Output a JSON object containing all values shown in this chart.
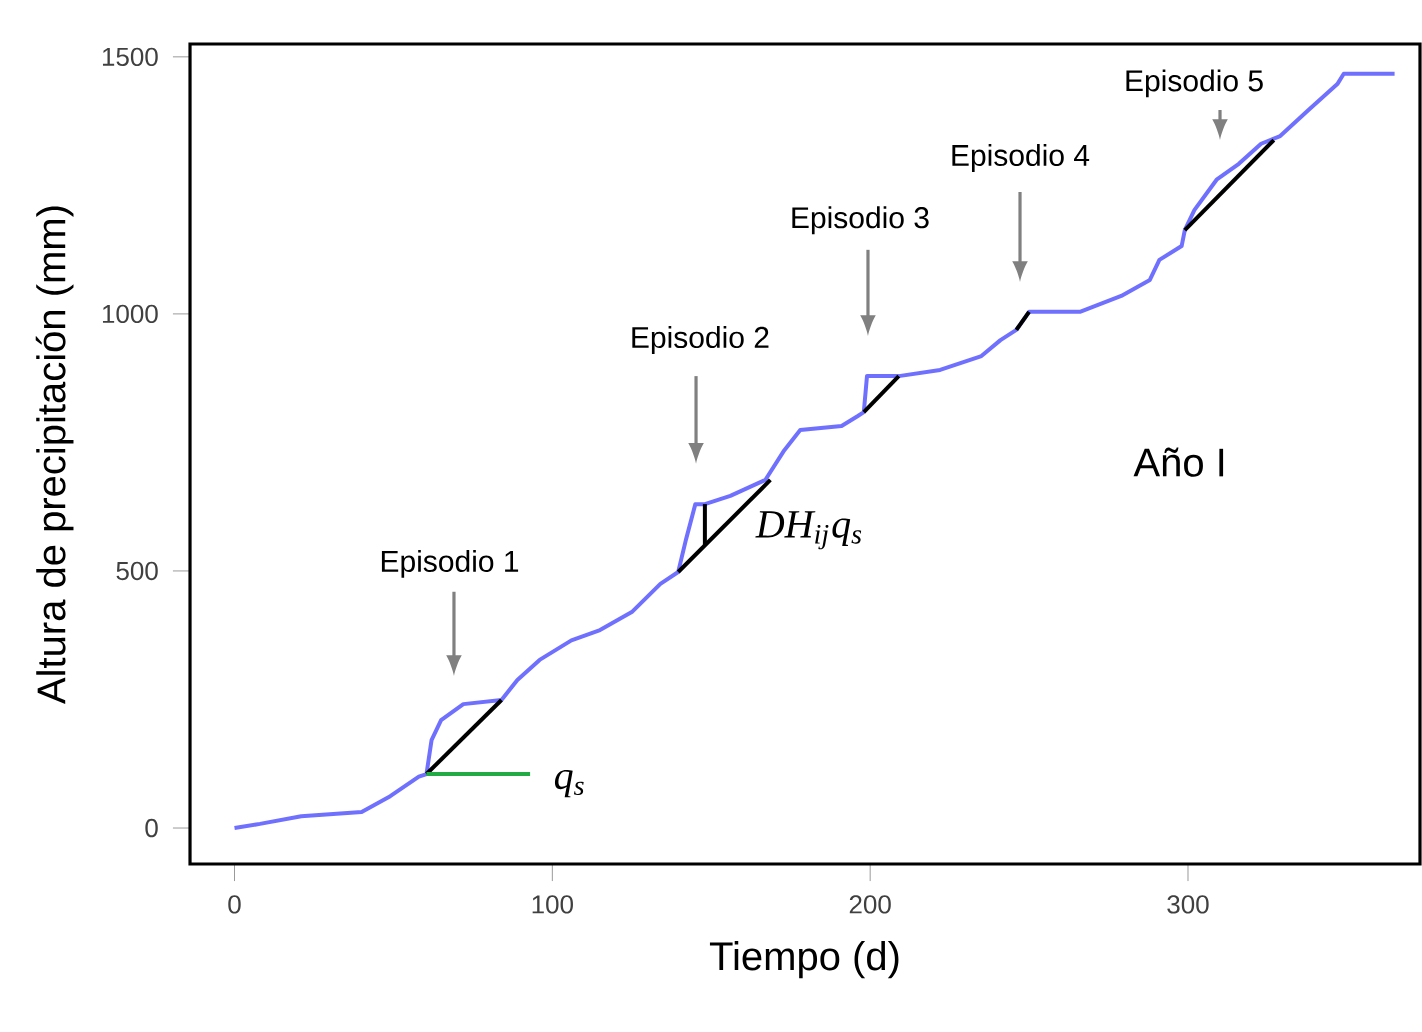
{
  "chart_data": {
    "type": "line",
    "xlabel": "Tiempo (d)",
    "ylabel": "Altura de precipitación (mm)",
    "xlim": [
      -14,
      373
    ],
    "ylim": [
      -70,
      1525
    ],
    "xticks": [
      0,
      100,
      200,
      300
    ],
    "yticks": [
      0,
      500,
      1000,
      1500
    ],
    "series": [
      {
        "color": "#7070ff",
        "x": [
          0,
          8,
          21,
          40,
          49,
          58,
          60.4,
          62,
          65,
          72,
          84,
          89,
          96,
          106,
          115,
          125,
          134,
          139.6,
          142,
          145,
          148,
          156,
          167,
          173,
          178,
          191,
          196,
          198,
          199,
          209,
          222,
          235,
          241,
          246,
          250,
          266,
          279,
          288,
          291,
          298,
          299,
          302,
          309,
          316,
          323,
          329,
          338,
          347,
          349,
          365
        ],
        "values": [
          0,
          8,
          23,
          31,
          62,
          100,
          105,
          171,
          210,
          241,
          249,
          288,
          327,
          365,
          385,
          420,
          475,
          498,
          560,
          630,
          630,
          646,
          677,
          735,
          774,
          782,
          801,
          809,
          879,
          879,
          891,
          918,
          949,
          969,
          1004,
          1004,
          1035,
          1066,
          1105,
          1132,
          1163,
          1202,
          1261,
          1292,
          1331,
          1346,
          1397,
          1447,
          1467,
          1467
        ]
      },
      {
        "color": "#000000",
        "x": [
          60.4,
          84
        ],
        "values": [
          105,
          249
        ]
      },
      {
        "color": "#000000",
        "x": [
          139.6,
          168.6
        ],
        "values": [
          498,
          677
        ]
      },
      {
        "color": "#000000",
        "x": [
          148,
          148
        ],
        "values": [
          550,
          630
        ]
      },
      {
        "color": "#000000",
        "x": [
          198,
          209
        ],
        "values": [
          809,
          879
        ]
      },
      {
        "color": "#000000",
        "x": [
          246,
          250
        ],
        "values": [
          969,
          1004
        ]
      },
      {
        "color": "#000000",
        "x": [
          299,
          327
        ],
        "values": [
          1163,
          1338
        ]
      },
      {
        "color": "#22aa44",
        "x": [
          60.4,
          93
        ],
        "values": [
          105,
          105
        ]
      }
    ],
    "annotations": [
      "Episodio 1",
      "Episodio 2",
      "Episodio 3",
      "Episodio 4",
      "Episodio 5",
      "Año I",
      "*q*$_{s}$",
      "*DH*$_{ij}$*q*$_{s}$"
    ]
  }
}
